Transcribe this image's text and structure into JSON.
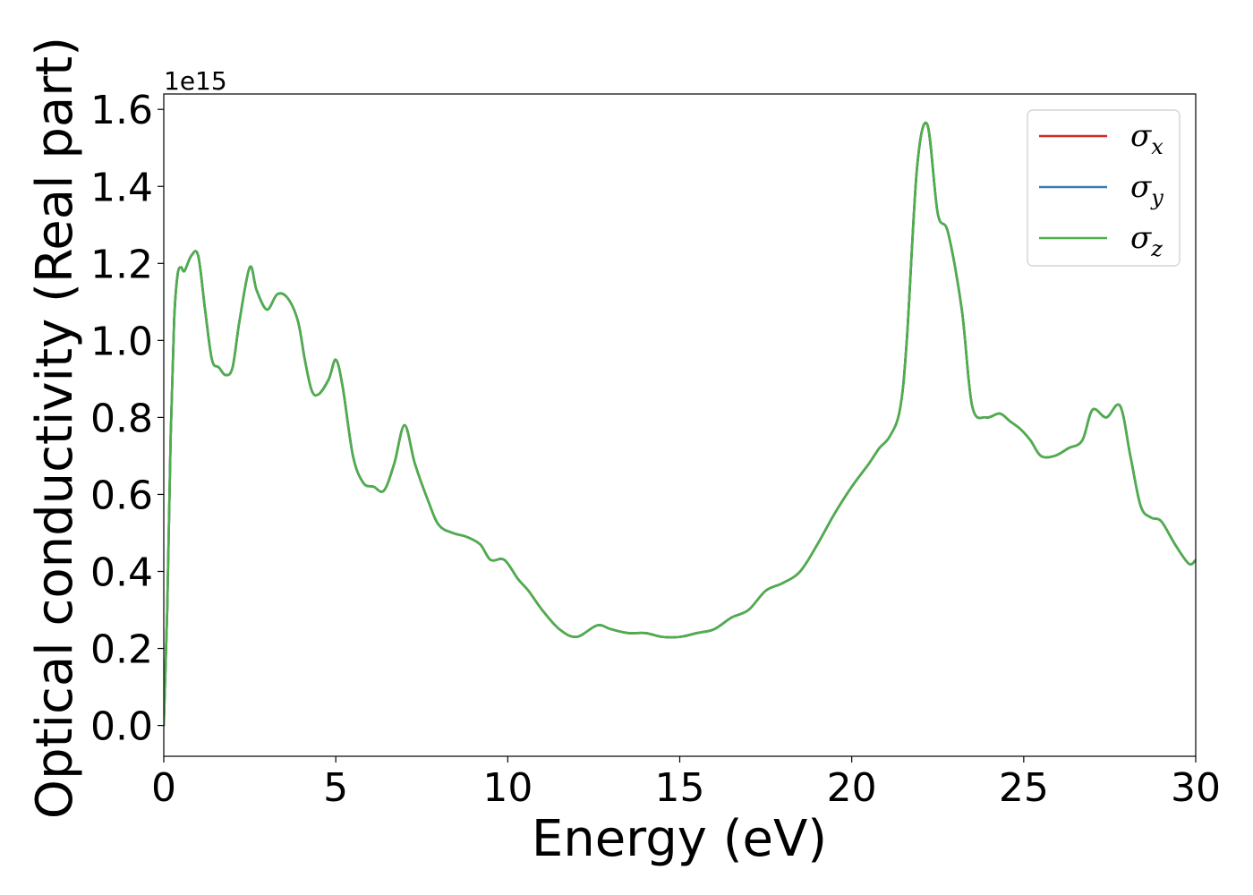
{
  "chart_data": {
    "type": "line",
    "xlabel": "Energy (eV)",
    "ylabel": "Optical conductivity (Real part)",
    "y_offset_label": "1e15",
    "xlim": [
      0,
      30
    ],
    "ylim": [
      -0.08,
      1.64
    ],
    "x_ticks": [
      0,
      5,
      10,
      15,
      20,
      25,
      30
    ],
    "x_tick_labels": [
      "0",
      "5",
      "10",
      "15",
      "20",
      "25",
      "30"
    ],
    "y_ticks": [
      0.0,
      0.2,
      0.4,
      0.6,
      0.8,
      1.0,
      1.2,
      1.4,
      1.6
    ],
    "y_tick_labels": [
      "0.0",
      "0.2",
      "0.4",
      "0.6",
      "0.8",
      "1.0",
      "1.2",
      "1.4",
      "1.6"
    ],
    "grid": false,
    "legend_position": "top-right",
    "x": [
      0,
      0.1,
      0.2,
      0.3,
      0.4,
      0.5,
      0.6,
      0.8,
      1.0,
      1.2,
      1.4,
      1.6,
      1.8,
      2.0,
      2.2,
      2.5,
      2.7,
      3.0,
      3.3,
      3.6,
      3.9,
      4.1,
      4.3,
      4.5,
      4.8,
      5.0,
      5.2,
      5.5,
      5.8,
      6.1,
      6.4,
      6.7,
      7.0,
      7.3,
      7.7,
      8.0,
      8.4,
      8.8,
      9.2,
      9.5,
      9.9,
      10.3,
      10.6,
      11.0,
      11.5,
      12.0,
      12.6,
      13.0,
      13.5,
      14.0,
      14.5,
      15.0,
      15.5,
      16.0,
      16.5,
      17.0,
      17.5,
      18.0,
      18.5,
      19.0,
      19.5,
      20.0,
      20.5,
      20.8,
      21.1,
      21.4,
      21.6,
      21.9,
      22.2,
      22.5,
      22.8,
      23.2,
      23.5,
      23.9,
      24.3,
      24.6,
      24.9,
      25.2,
      25.5,
      25.9,
      26.3,
      26.7,
      27.0,
      27.4,
      27.8,
      28.1,
      28.4,
      28.7,
      29.0,
      29.4,
      29.8,
      30.0
    ],
    "series": [
      {
        "name": "σx",
        "color": "#d62728",
        "values": [
          0.0,
          0.3,
          0.75,
          1.05,
          1.17,
          1.19,
          1.18,
          1.22,
          1.22,
          1.08,
          0.95,
          0.93,
          0.91,
          0.93,
          1.05,
          1.19,
          1.13,
          1.08,
          1.12,
          1.11,
          1.05,
          0.95,
          0.87,
          0.86,
          0.9,
          0.95,
          0.88,
          0.7,
          0.63,
          0.62,
          0.61,
          0.68,
          0.78,
          0.68,
          0.58,
          0.52,
          0.5,
          0.49,
          0.47,
          0.43,
          0.43,
          0.38,
          0.35,
          0.3,
          0.25,
          0.23,
          0.26,
          0.25,
          0.24,
          0.24,
          0.23,
          0.23,
          0.24,
          0.25,
          0.28,
          0.3,
          0.35,
          0.37,
          0.4,
          0.47,
          0.55,
          0.62,
          0.68,
          0.72,
          0.75,
          0.82,
          1.0,
          1.45,
          1.56,
          1.33,
          1.28,
          1.08,
          0.83,
          0.8,
          0.81,
          0.79,
          0.77,
          0.74,
          0.7,
          0.7,
          0.72,
          0.74,
          0.82,
          0.8,
          0.83,
          0.7,
          0.57,
          0.54,
          0.53,
          0.47,
          0.42,
          0.43
        ]
      },
      {
        "name": "σy",
        "color": "#377eb8",
        "values": [
          0.0,
          0.3,
          0.75,
          1.05,
          1.17,
          1.19,
          1.18,
          1.22,
          1.22,
          1.08,
          0.95,
          0.93,
          0.91,
          0.93,
          1.05,
          1.19,
          1.13,
          1.08,
          1.12,
          1.11,
          1.05,
          0.95,
          0.87,
          0.86,
          0.9,
          0.95,
          0.88,
          0.7,
          0.63,
          0.62,
          0.61,
          0.68,
          0.78,
          0.68,
          0.58,
          0.52,
          0.5,
          0.49,
          0.47,
          0.43,
          0.43,
          0.38,
          0.35,
          0.3,
          0.25,
          0.23,
          0.26,
          0.25,
          0.24,
          0.24,
          0.23,
          0.23,
          0.24,
          0.25,
          0.28,
          0.3,
          0.35,
          0.37,
          0.4,
          0.47,
          0.55,
          0.62,
          0.68,
          0.72,
          0.75,
          0.82,
          1.0,
          1.45,
          1.56,
          1.33,
          1.28,
          1.08,
          0.83,
          0.8,
          0.81,
          0.79,
          0.77,
          0.74,
          0.7,
          0.7,
          0.72,
          0.74,
          0.82,
          0.8,
          0.83,
          0.7,
          0.57,
          0.54,
          0.53,
          0.47,
          0.42,
          0.43
        ]
      },
      {
        "name": "σz",
        "color": "#4daf4a",
        "values": [
          0.0,
          0.3,
          0.75,
          1.05,
          1.17,
          1.19,
          1.18,
          1.22,
          1.22,
          1.08,
          0.95,
          0.93,
          0.91,
          0.93,
          1.05,
          1.19,
          1.13,
          1.08,
          1.12,
          1.11,
          1.05,
          0.95,
          0.87,
          0.86,
          0.9,
          0.95,
          0.88,
          0.7,
          0.63,
          0.62,
          0.61,
          0.68,
          0.78,
          0.68,
          0.58,
          0.52,
          0.5,
          0.49,
          0.47,
          0.43,
          0.43,
          0.38,
          0.35,
          0.3,
          0.25,
          0.23,
          0.26,
          0.25,
          0.24,
          0.24,
          0.23,
          0.23,
          0.24,
          0.25,
          0.28,
          0.3,
          0.35,
          0.37,
          0.4,
          0.47,
          0.55,
          0.62,
          0.68,
          0.72,
          0.75,
          0.82,
          1.0,
          1.45,
          1.56,
          1.33,
          1.28,
          1.08,
          0.83,
          0.8,
          0.81,
          0.79,
          0.77,
          0.74,
          0.7,
          0.7,
          0.72,
          0.74,
          0.82,
          0.8,
          0.83,
          0.7,
          0.57,
          0.54,
          0.53,
          0.47,
          0.42,
          0.43
        ]
      }
    ],
    "legend": [
      {
        "symbol": "σ",
        "sub": "x",
        "color": "#d62728"
      },
      {
        "symbol": "σ",
        "sub": "y",
        "color": "#377eb8"
      },
      {
        "symbol": "σ",
        "sub": "z",
        "color": "#4daf4a"
      }
    ]
  }
}
